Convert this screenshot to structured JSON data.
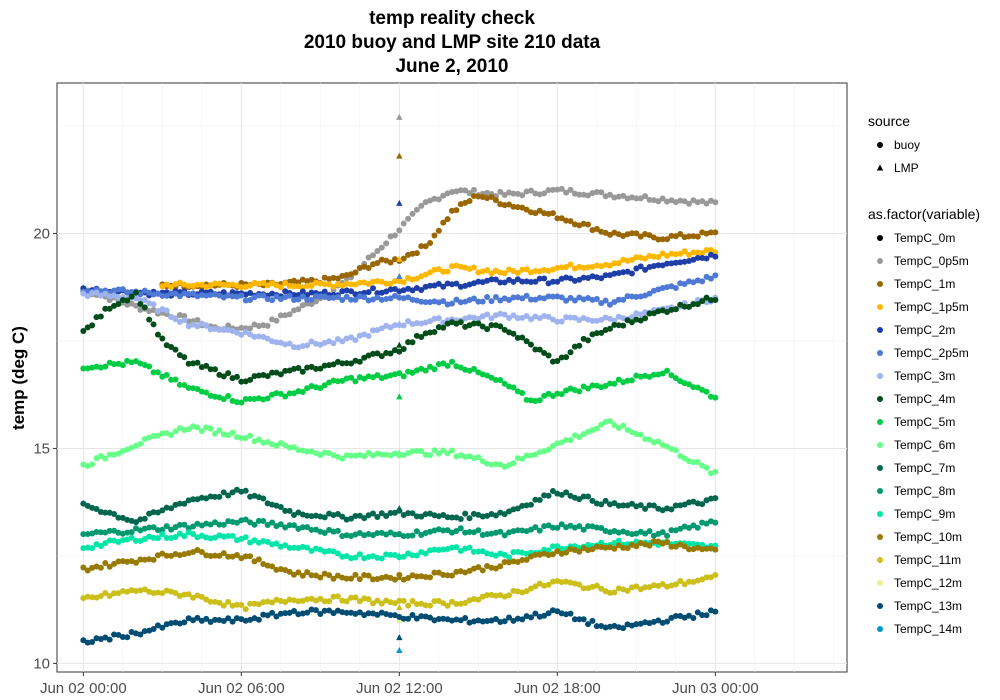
{
  "chart_data": {
    "type": "scatter",
    "title": [
      "temp reality check",
      "2010 buoy and LMP site 210 data",
      "June 2, 2010"
    ],
    "xlabel": "",
    "ylabel": "temp (deg C)",
    "x_range_hours": [
      -1,
      29
    ],
    "ylim": [
      9.8,
      23.5
    ],
    "x_ticks": [
      {
        "hour": 0,
        "label": "Jun 02 00:00"
      },
      {
        "hour": 6,
        "label": "Jun 02 06:00"
      },
      {
        "hour": 12,
        "label": "Jun 02 12:00"
      },
      {
        "hour": 18,
        "label": "Jun 02 18:00"
      },
      {
        "hour": 24,
        "label": "Jun 03 00:00"
      }
    ],
    "y_ticks": [
      10,
      15,
      20
    ],
    "grid": true,
    "legend_position": "right",
    "legend_shape_title": "source",
    "legend_shapes": [
      {
        "label": "buoy",
        "shape": "circle"
      },
      {
        "label": "LMP",
        "shape": "triangle"
      }
    ],
    "legend_color_title": "as.factor(variable)",
    "series": [
      {
        "name": "TempC_0m",
        "color": "#000000",
        "buoy": []
      },
      {
        "name": "TempC_0p5m",
        "color": "#999999",
        "buoy": [
          [
            0,
            18.7
          ],
          [
            2,
            18.3
          ],
          [
            4,
            18.0
          ],
          [
            5,
            17.8
          ],
          [
            6,
            17.8
          ],
          [
            7,
            17.9
          ],
          [
            8,
            18.2
          ],
          [
            9,
            18.5
          ],
          [
            10,
            18.9
          ],
          [
            11,
            19.5
          ],
          [
            12,
            20.1
          ],
          [
            13,
            20.7
          ],
          [
            14,
            21.0
          ],
          [
            16,
            20.9
          ],
          [
            18,
            21.0
          ],
          [
            20,
            20.9
          ],
          [
            22,
            20.8
          ],
          [
            24,
            20.7
          ]
        ],
        "lmp": 22.7
      },
      {
        "name": "TempC_1m",
        "color": "#996600",
        "buoy": [
          [
            3,
            18.8
          ],
          [
            5,
            18.8
          ],
          [
            7,
            18.8
          ],
          [
            9,
            18.9
          ],
          [
            10,
            19.0
          ],
          [
            11,
            19.3
          ],
          [
            12,
            19.4
          ],
          [
            13,
            19.7
          ],
          [
            14,
            20.5
          ],
          [
            15,
            20.9
          ],
          [
            16,
            20.7
          ],
          [
            18,
            20.4
          ],
          [
            20,
            20.0
          ],
          [
            22,
            19.9
          ],
          [
            24,
            20.0
          ]
        ],
        "lmp": 21.8
      },
      {
        "name": "TempC_1p5m",
        "color": "#FFB800",
        "buoy": [
          [
            3,
            18.8
          ],
          [
            6,
            18.8
          ],
          [
            9,
            18.8
          ],
          [
            12,
            18.9
          ],
          [
            14,
            19.2
          ],
          [
            16,
            19.1
          ],
          [
            18,
            19.2
          ],
          [
            20,
            19.3
          ],
          [
            22,
            19.5
          ],
          [
            24,
            19.6
          ]
        ],
        "lmp": 19.4
      },
      {
        "name": "TempC_2m",
        "color": "#1F3FA8",
        "buoy": [
          [
            0,
            18.7
          ],
          [
            3,
            18.6
          ],
          [
            6,
            18.6
          ],
          [
            9,
            18.6
          ],
          [
            12,
            18.7
          ],
          [
            14,
            18.8
          ],
          [
            16,
            18.9
          ],
          [
            18,
            18.9
          ],
          [
            20,
            19.0
          ],
          [
            22,
            19.3
          ],
          [
            24,
            19.5
          ]
        ],
        "lmp": 20.7
      },
      {
        "name": "TempC_2p5m",
        "color": "#4E7AD6",
        "buoy": [
          [
            0,
            18.7
          ],
          [
            3,
            18.6
          ],
          [
            6,
            18.5
          ],
          [
            9,
            18.5
          ],
          [
            12,
            18.5
          ],
          [
            14,
            18.4
          ],
          [
            16,
            18.5
          ],
          [
            18,
            18.5
          ],
          [
            20,
            18.4
          ],
          [
            22,
            18.7
          ],
          [
            24,
            19.0
          ]
        ],
        "lmp": 19.0
      },
      {
        "name": "TempC_3m",
        "color": "#9FB3EE",
        "buoy": [
          [
            0,
            18.6
          ],
          [
            2,
            18.5
          ],
          [
            4,
            17.9
          ],
          [
            6,
            17.7
          ],
          [
            8,
            17.4
          ],
          [
            10,
            17.5
          ],
          [
            12,
            17.9
          ],
          [
            14,
            18.0
          ],
          [
            16,
            18.1
          ],
          [
            18,
            18.0
          ],
          [
            20,
            18.0
          ],
          [
            22,
            18.2
          ],
          [
            24,
            18.5
          ]
        ],
        "lmp": 17.9
      },
      {
        "name": "TempC_4m",
        "color": "#004D1A",
        "buoy": [
          [
            0,
            17.7
          ],
          [
            1,
            18.3
          ],
          [
            2,
            18.6
          ],
          [
            3,
            17.5
          ],
          [
            4,
            17.0
          ],
          [
            6,
            16.6
          ],
          [
            8,
            16.8
          ],
          [
            10,
            17.0
          ],
          [
            12,
            17.3
          ],
          [
            13,
            17.7
          ],
          [
            14,
            17.9
          ],
          [
            16,
            17.8
          ],
          [
            17,
            17.4
          ],
          [
            18,
            17.0
          ],
          [
            19,
            17.5
          ],
          [
            20,
            17.8
          ],
          [
            22,
            18.2
          ],
          [
            24,
            18.5
          ]
        ],
        "lmp": 17.4
      },
      {
        "name": "TempC_5m",
        "color": "#00CC44",
        "buoy": [
          [
            0,
            16.9
          ],
          [
            2,
            17.0
          ],
          [
            4,
            16.4
          ],
          [
            6,
            16.1
          ],
          [
            8,
            16.3
          ],
          [
            10,
            16.6
          ],
          [
            12,
            16.7
          ],
          [
            14,
            17.0
          ],
          [
            16,
            16.5
          ],
          [
            17,
            16.1
          ],
          [
            18,
            16.3
          ],
          [
            20,
            16.5
          ],
          [
            22,
            16.8
          ],
          [
            24,
            16.2
          ]
        ],
        "lmp": 16.2
      },
      {
        "name": "TempC_6m",
        "color": "#66FF88",
        "buoy": [
          [
            0,
            14.6
          ],
          [
            2,
            15.1
          ],
          [
            4,
            15.5
          ],
          [
            6,
            15.3
          ],
          [
            8,
            15.0
          ],
          [
            10,
            14.8
          ],
          [
            12,
            14.9
          ],
          [
            14,
            14.9
          ],
          [
            16,
            14.6
          ],
          [
            18,
            15.1
          ],
          [
            20,
            15.6
          ],
          [
            22,
            15.1
          ],
          [
            24,
            14.4
          ]
        ],
        "lmp": 14.9
      },
      {
        "name": "TempC_7m",
        "color": "#00664D",
        "buoy": [
          [
            0,
            13.7
          ],
          [
            2,
            13.3
          ],
          [
            4,
            13.8
          ],
          [
            6,
            14.0
          ],
          [
            8,
            13.5
          ],
          [
            10,
            13.4
          ],
          [
            12,
            13.5
          ],
          [
            14,
            13.4
          ],
          [
            16,
            13.5
          ],
          [
            18,
            14.0
          ],
          [
            20,
            13.7
          ],
          [
            22,
            13.6
          ],
          [
            24,
            13.8
          ]
        ],
        "lmp": 13.6
      },
      {
        "name": "TempC_8m",
        "color": "#009970",
        "buoy": [
          [
            0,
            13.0
          ],
          [
            2,
            13.1
          ],
          [
            4,
            13.2
          ],
          [
            6,
            13.3
          ],
          [
            8,
            13.2
          ],
          [
            10,
            13.0
          ],
          [
            12,
            13.0
          ],
          [
            14,
            13.1
          ],
          [
            16,
            13.0
          ],
          [
            18,
            13.2
          ],
          [
            20,
            13.1
          ],
          [
            22,
            13.0
          ],
          [
            24,
            13.3
          ]
        ],
        "lmp": 13.0
      },
      {
        "name": "TempC_9m",
        "color": "#00E6A8",
        "buoy": [
          [
            0,
            12.7
          ],
          [
            2,
            12.9
          ],
          [
            4,
            13.0
          ],
          [
            6,
            12.9
          ],
          [
            8,
            12.7
          ],
          [
            10,
            12.5
          ],
          [
            12,
            12.5
          ],
          [
            14,
            12.7
          ],
          [
            16,
            12.5
          ],
          [
            18,
            12.7
          ],
          [
            20,
            12.8
          ],
          [
            22,
            12.8
          ],
          [
            24,
            12.7
          ]
        ],
        "lmp": 12.5
      },
      {
        "name": "TempC_10m",
        "color": "#997A00",
        "buoy": [
          [
            0,
            12.2
          ],
          [
            2,
            12.4
          ],
          [
            4,
            12.6
          ],
          [
            6,
            12.5
          ],
          [
            8,
            12.1
          ],
          [
            10,
            12.0
          ],
          [
            12,
            12.0
          ],
          [
            14,
            12.1
          ],
          [
            16,
            12.3
          ],
          [
            18,
            12.6
          ],
          [
            20,
            12.7
          ],
          [
            22,
            12.8
          ],
          [
            24,
            12.6
          ]
        ],
        "lmp": 12.0
      },
      {
        "name": "TempC_11m",
        "color": "#CCBF1A",
        "buoy": [
          [
            0,
            11.5
          ],
          [
            2,
            11.7
          ],
          [
            4,
            11.6
          ],
          [
            6,
            11.3
          ],
          [
            8,
            11.5
          ],
          [
            10,
            11.5
          ],
          [
            12,
            11.4
          ],
          [
            14,
            11.4
          ],
          [
            16,
            11.6
          ],
          [
            18,
            11.9
          ],
          [
            20,
            11.7
          ],
          [
            22,
            11.8
          ],
          [
            24,
            12.0
          ]
        ],
        "lmp": 11.3
      },
      {
        "name": "TempC_12m",
        "color": "#EEEE99",
        "buoy": [],
        "lmp": 11.0
      },
      {
        "name": "TempC_13m",
        "color": "#004D73",
        "buoy": [
          [
            0,
            10.5
          ],
          [
            2,
            10.7
          ],
          [
            4,
            11.0
          ],
          [
            6,
            11.0
          ],
          [
            8,
            11.2
          ],
          [
            10,
            11.2
          ],
          [
            12,
            11.1
          ],
          [
            14,
            11.0
          ],
          [
            16,
            11.0
          ],
          [
            18,
            11.2
          ],
          [
            20,
            10.8
          ],
          [
            22,
            11.0
          ],
          [
            24,
            11.2
          ]
        ],
        "lmp": 10.6
      },
      {
        "name": "TempC_14m",
        "color": "#0099CC",
        "buoy": [],
        "lmp": 10.3
      }
    ]
  }
}
